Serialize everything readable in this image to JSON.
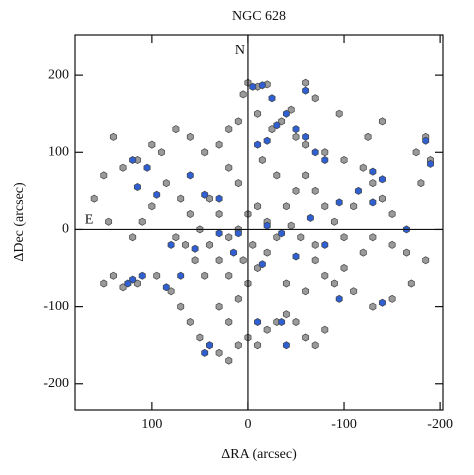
{
  "chart_data": {
    "type": "scatter",
    "title": "NGC 628",
    "x_label": "ΔRA (arcsec)",
    "y_label": "ΔDec (arcsec)",
    "annotations": [
      "N",
      "E"
    ],
    "xlim": [
      180,
      -203
    ],
    "ylim": [
      -234,
      252
    ],
    "xticks": [
      100,
      0,
      -100,
      -200
    ],
    "yticks": [
      -200,
      -100,
      0,
      100,
      200
    ],
    "series": [
      {
        "color": "#9a9a9a",
        "x": [
          0,
          -10,
          -20,
          5,
          -60,
          -70,
          -45,
          -35,
          -25,
          -50,
          -60,
          -80,
          -100,
          -120,
          -130,
          -140,
          -150,
          -130,
          -120,
          -100,
          -90,
          -80,
          -70,
          -110,
          -130,
          -150,
          -170,
          -185,
          -175,
          -190,
          -185,
          -140,
          -95,
          -10,
          10,
          20,
          30,
          45,
          60,
          75,
          90,
          100,
          115,
          130,
          140,
          85,
          70,
          60,
          50,
          40,
          30,
          20,
          100,
          110,
          120,
          140,
          130,
          150,
          115,
          95,
          80,
          70,
          60,
          50,
          40,
          30,
          20,
          10,
          0,
          -10,
          -20,
          -30,
          -40,
          -50,
          -60,
          -70,
          -80,
          20,
          30,
          10,
          0,
          -10,
          -20,
          -30,
          -20,
          -10,
          0,
          10,
          20,
          30,
          40,
          -40,
          -50,
          -60,
          -70,
          -80,
          -90,
          -100,
          -110,
          10,
          20,
          -15,
          -30,
          150,
          160,
          145,
          -40,
          -60,
          -70,
          -55,
          -45,
          -5,
          5,
          45,
          55,
          65,
          75,
          -150,
          -165,
          -180,
          -125
        ],
        "y": [
          190,
          185,
          188,
          175,
          190,
          170,
          155,
          140,
          130,
          120,
          110,
          100,
          90,
          80,
          60,
          40,
          20,
          -10,
          -30,
          -50,
          -70,
          -60,
          -40,
          -80,
          -100,
          -90,
          -70,
          -40,
          100,
          90,
          120,
          140,
          150,
          150,
          140,
          130,
          110,
          100,
          120,
          130,
          100,
          110,
          90,
          80,
          120,
          60,
          40,
          20,
          0,
          -20,
          -40,
          -60,
          30,
          10,
          -10,
          -60,
          -75,
          -70,
          -70,
          -60,
          -80,
          -100,
          -120,
          -140,
          -150,
          -160,
          -170,
          -150,
          -140,
          -150,
          -130,
          -120,
          -110,
          -120,
          -140,
          -150,
          -130,
          -120,
          -100,
          -90,
          -70,
          -50,
          -30,
          -10,
          10,
          30,
          20,
          0,
          -10,
          20,
          40,
          30,
          50,
          70,
          50,
          30,
          10,
          -10,
          30,
          60,
          80,
          90,
          70,
          70,
          40,
          10,
          -70,
          -80,
          -20,
          -10,
          5,
          -20,
          -40,
          -60,
          -40,
          -20,
          -10,
          -20,
          -30,
          60,
          120
        ]
      },
      {
        "color": "#2f5fd0",
        "x": [
          -40,
          -30,
          -50,
          -20,
          -10,
          -60,
          -70,
          -80,
          -5,
          -15,
          -185,
          -190,
          -130,
          -140,
          -115,
          -95,
          -80,
          -65,
          -50,
          -35,
          -20,
          -15,
          10,
          15,
          30,
          45,
          55,
          70,
          85,
          110,
          120,
          125,
          80,
          95,
          105,
          120,
          115,
          60,
          40,
          45,
          -40,
          -35,
          -10,
          -95,
          -140,
          -130,
          -165,
          30,
          -25,
          -60
        ],
        "y": [
          150,
          135,
          130,
          115,
          110,
          120,
          100,
          90,
          185,
          187,
          115,
          85,
          75,
          65,
          50,
          35,
          -20,
          15,
          -35,
          -5,
          5,
          -45,
          -5,
          -30,
          40,
          45,
          -25,
          -60,
          -75,
          -60,
          -65,
          -70,
          -20,
          45,
          80,
          90,
          55,
          70,
          -150,
          -160,
          -150,
          -120,
          -120,
          -90,
          -95,
          35,
          0,
          -5,
          170,
          180
        ]
      }
    ]
  }
}
